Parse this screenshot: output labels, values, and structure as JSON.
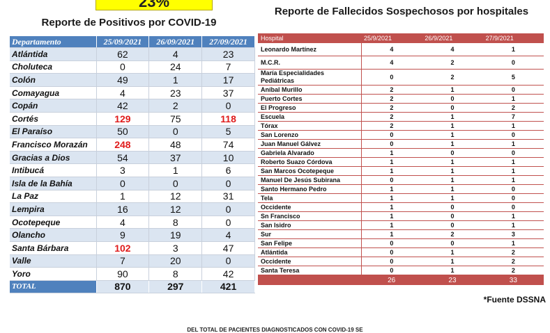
{
  "percent_badge": "23%",
  "left_title": "Reporte de Positivos por COVID-19",
  "right_title": "Reporte de Fallecidos Sospechosos por hospitales",
  "positivos": {
    "headers": [
      "Departamento",
      "25/09/2021",
      "26/09/2021",
      "27/09/2021"
    ],
    "rows": [
      {
        "d": "Atlántida",
        "v": [
          "62",
          "4",
          "23"
        ],
        "red": []
      },
      {
        "d": "Choluteca",
        "v": [
          "0",
          "24",
          "7"
        ],
        "red": []
      },
      {
        "d": "Colón",
        "v": [
          "49",
          "1",
          "17"
        ],
        "red": []
      },
      {
        "d": "Comayagua",
        "v": [
          "4",
          "23",
          "37"
        ],
        "red": []
      },
      {
        "d": "Copán",
        "v": [
          "42",
          "2",
          "0"
        ],
        "red": []
      },
      {
        "d": "Cortés",
        "v": [
          "129",
          "75",
          "118"
        ],
        "red": [
          0,
          2
        ]
      },
      {
        "d": "El Paraíso",
        "v": [
          "50",
          "0",
          "5"
        ],
        "red": []
      },
      {
        "d": "Francisco Morazán",
        "v": [
          "248",
          "48",
          "74"
        ],
        "red": [
          0
        ]
      },
      {
        "d": "Gracias a Dios",
        "v": [
          "54",
          "37",
          "10"
        ],
        "red": []
      },
      {
        "d": "Intibucá",
        "v": [
          "3",
          "1",
          "6"
        ],
        "red": []
      },
      {
        "d": "Isla de la Bahía",
        "v": [
          "0",
          "0",
          "0"
        ],
        "red": []
      },
      {
        "d": "La Paz",
        "v": [
          "1",
          "12",
          "31"
        ],
        "red": []
      },
      {
        "d": "Lempira",
        "v": [
          "16",
          "12",
          "0"
        ],
        "red": []
      },
      {
        "d": "Ocotepeque",
        "v": [
          "4",
          "8",
          "0"
        ],
        "red": []
      },
      {
        "d": "Olancho",
        "v": [
          "9",
          "19",
          "4"
        ],
        "red": []
      },
      {
        "d": "Santa Bárbara",
        "v": [
          "102",
          "3",
          "47"
        ],
        "red": [
          0
        ]
      },
      {
        "d": "Valle",
        "v": [
          "7",
          "20",
          "0"
        ],
        "red": []
      },
      {
        "d": "Yoro",
        "v": [
          "90",
          "8",
          "42"
        ],
        "red": []
      }
    ],
    "total": {
      "label": "TOTAL",
      "v": [
        "870",
        "297",
        "421"
      ]
    }
  },
  "fallecidos": {
    "headers": [
      "Hospital",
      "25/9/2021",
      "26/9/2021",
      "27/9/2021"
    ],
    "rows": [
      {
        "h": "Leonardo Martínez",
        "v": [
          "4",
          "4",
          "1"
        ],
        "size": "tall"
      },
      {
        "h": "M.C.R.",
        "v": [
          "4",
          "2",
          "0"
        ],
        "size": "tall"
      },
      {
        "h": "María Especialidades Pediátricas",
        "v": [
          "0",
          "2",
          "5"
        ],
        "size": "tall2"
      },
      {
        "h": "Aníbal Murillo",
        "v": [
          "2",
          "1",
          "0"
        ],
        "size": ""
      },
      {
        "h": "Puerto Cortes",
        "v": [
          "2",
          "0",
          "1"
        ],
        "size": ""
      },
      {
        "h": "El Progreso",
        "v": [
          "2",
          "0",
          "2"
        ],
        "size": ""
      },
      {
        "h": "Escuela",
        "v": [
          "2",
          "1",
          "7"
        ],
        "size": ""
      },
      {
        "h": "Tórax",
        "v": [
          "2",
          "1",
          "1"
        ],
        "size": ""
      },
      {
        "h": "San Lorenzo",
        "v": [
          "0",
          "1",
          "0"
        ],
        "size": ""
      },
      {
        "h": "Juan Manuel Gálvez",
        "v": [
          "0",
          "1",
          "1"
        ],
        "size": ""
      },
      {
        "h": "Gabriela Alvarado",
        "v": [
          "1",
          "0",
          "0"
        ],
        "size": ""
      },
      {
        "h": "Roberto Suazo Córdova",
        "v": [
          "1",
          "1",
          "1"
        ],
        "size": ""
      },
      {
        "h": "San Marcos Ocotepeque",
        "v": [
          "1",
          "1",
          "1"
        ],
        "size": ""
      },
      {
        "h": "Manuel De Jesús Subirana",
        "v": [
          "0",
          "1",
          "1"
        ],
        "size": ""
      },
      {
        "h": "Santo Hermano Pedro",
        "v": [
          "1",
          "1",
          "0"
        ],
        "size": ""
      },
      {
        "h": "Tela",
        "v": [
          "1",
          "1",
          "0"
        ],
        "size": ""
      },
      {
        "h": "Occidente",
        "v": [
          "1",
          "0",
          "0"
        ],
        "size": ""
      },
      {
        "h": "Sn Francisco",
        "v": [
          "1",
          "0",
          "1"
        ],
        "size": ""
      },
      {
        "h": "San Isidro",
        "v": [
          "1",
          "0",
          "1"
        ],
        "size": ""
      },
      {
        "h": "Sur",
        "v": [
          "1",
          "2",
          "3"
        ],
        "size": ""
      },
      {
        "h": "San Felipe",
        "v": [
          "0",
          "0",
          "1"
        ],
        "size": ""
      },
      {
        "h": "Atlántida",
        "v": [
          "0",
          "1",
          "2"
        ],
        "size": ""
      },
      {
        "h": "Occidente",
        "v": [
          "0",
          "1",
          "2"
        ],
        "size": ""
      },
      {
        "h": "Santa Teresa",
        "v": [
          "0",
          "1",
          "2"
        ],
        "size": ""
      }
    ],
    "total": [
      "26",
      "23",
      "33"
    ]
  },
  "source_note": "*Fuente DSSNA",
  "footer_text": "DEL TOTAL DE PACIENTES DIAGNOSTICADOS CON COVID-19 SE"
}
